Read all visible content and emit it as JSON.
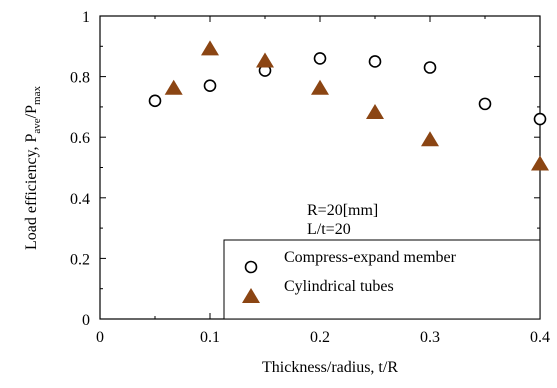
{
  "chart_data": {
    "type": "scatter",
    "title": "",
    "xlabel": "Thickness/radius, t/R",
    "ylabel": {
      "prefix": "Load efficiency, P",
      "sub1": "ave",
      "slash": "/P",
      "sub2": "max"
    },
    "xlim": [
      0,
      0.4
    ],
    "ylim": [
      0,
      1
    ],
    "xticks": [
      0,
      0.1,
      0.2,
      0.3,
      0.4
    ],
    "xtick_labels": [
      "0",
      "0.1",
      "0.2",
      "0.3",
      "0.4"
    ],
    "yticks": [
      0,
      0.2,
      0.4,
      0.6,
      0.8,
      1
    ],
    "ytick_labels": [
      "0",
      "0.2",
      "0.4",
      "0.6",
      "0.8",
      "1"
    ],
    "grid": false,
    "legend_position": "bottom-right",
    "annotations": [
      "R=20[mm]",
      "L/t=20"
    ],
    "series": [
      {
        "name": "Compress-expand member",
        "marker": "circle",
        "color": "#000000",
        "x": [
          0.05,
          0.1,
          0.15,
          0.2,
          0.25,
          0.3,
          0.35,
          0.4
        ],
        "y": [
          0.72,
          0.77,
          0.82,
          0.86,
          0.85,
          0.83,
          0.71,
          0.66
        ]
      },
      {
        "name": "Cylindrical tubes",
        "marker": "triangle",
        "color": "#8B4513",
        "x": [
          0.067,
          0.1,
          0.15,
          0.2,
          0.25,
          0.3,
          0.4
        ],
        "y": [
          0.76,
          0.89,
          0.85,
          0.76,
          0.68,
          0.59,
          0.51
        ]
      }
    ]
  }
}
